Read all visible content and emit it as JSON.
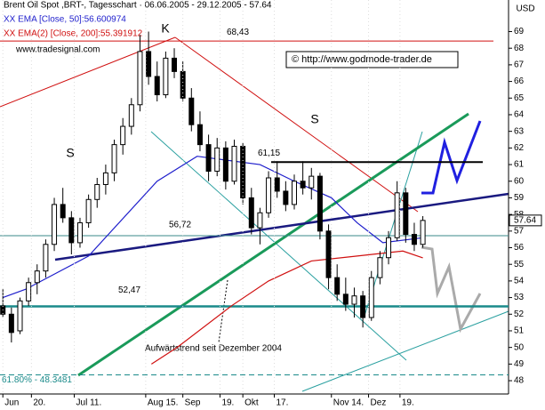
{
  "chart_data": {
    "type": "candlestick",
    "title": "Brent Oil Spot ,BRT-, Tagesschart · 06.06.2005 - 29.12.2005 - 57.64",
    "source": "www.tradesignal.com",
    "copyright": "© http://www.godmode-trader.de",
    "y_unit": "USD",
    "last": 57.64,
    "ylim": [
      47.2,
      70.9
    ],
    "yticks": [
      48,
      49,
      50,
      51,
      52,
      53,
      54,
      55,
      56,
      57,
      58,
      59,
      60,
      61,
      62,
      63,
      64,
      65,
      66,
      67,
      68,
      69
    ],
    "xlim": [
      -1,
      177
    ],
    "xticks": [
      {
        "value": 0,
        "label": "Jun"
      },
      {
        "value": 10,
        "label": "20."
      },
      {
        "value": 25,
        "label": "Jul 11."
      },
      {
        "value": 50,
        "label": "Aug 15."
      },
      {
        "value": 63,
        "label": "Sep"
      },
      {
        "value": 76,
        "label": "19."
      },
      {
        "value": 84,
        "label": "Okt"
      },
      {
        "value": 95,
        "label": "17."
      },
      {
        "value": 115,
        "label": "Nov 14."
      },
      {
        "value": 128,
        "label": "Dez"
      },
      {
        "value": 139,
        "label": "19."
      }
    ],
    "x": [
      0,
      3,
      6,
      9,
      12,
      15,
      18,
      21,
      24,
      27,
      30,
      33,
      36,
      39,
      42,
      45,
      48,
      51,
      54,
      57,
      60,
      63,
      66,
      69,
      72,
      75,
      78,
      81,
      84,
      87,
      90,
      93,
      96,
      99,
      102,
      105,
      108,
      111,
      114,
      117,
      120,
      123,
      126,
      129,
      132,
      135,
      138,
      141,
      144,
      147
    ],
    "open": [
      52.5,
      52.0,
      51.0,
      52.8,
      53.9,
      54.6,
      56.2,
      58.6,
      57.8,
      56.3,
      57.5,
      58.9,
      59.8,
      60.5,
      62.2,
      63.3,
      64.6,
      67.8,
      66.3,
      65.2,
      67.4,
      66.6,
      65.0,
      63.4,
      62.2,
      60.6,
      62.0,
      60.0,
      62.1,
      59.0,
      57.2,
      58.1,
      60.2,
      59.4,
      58.6,
      60.0,
      59.6,
      60.3,
      57.0,
      54.2,
      53.2,
      52.6,
      53.1,
      51.8,
      54.2,
      55.4,
      56.6,
      59.3,
      56.8,
      56.2
    ],
    "high": [
      53.5,
      52.4,
      53.0,
      54.2,
      55.0,
      56.5,
      59.0,
      59.6,
      58.2,
      57.8,
      59.2,
      60.2,
      61.0,
      62.5,
      63.8,
      65.0,
      68.8,
      69.0,
      67.2,
      67.8,
      68.0,
      67.2,
      65.6,
      64.2,
      62.8,
      62.6,
      62.4,
      62.5,
      62.3,
      59.6,
      58.4,
      60.6,
      61.2,
      60.0,
      60.4,
      61.2,
      60.8,
      60.5,
      57.4,
      55.0,
      54.2,
      53.6,
      53.4,
      54.6,
      55.8,
      57.0,
      60.0,
      59.6,
      57.5,
      57.9
    ],
    "low": [
      51.8,
      50.3,
      50.8,
      52.5,
      53.2,
      54.2,
      55.8,
      57.5,
      55.6,
      56.0,
      57.2,
      58.4,
      59.2,
      60.0,
      61.6,
      62.8,
      64.2,
      65.8,
      64.8,
      65.0,
      66.2,
      64.8,
      63.0,
      61.8,
      60.0,
      60.3,
      59.5,
      59.8,
      58.6,
      56.8,
      56.2,
      57.8,
      59.0,
      58.2,
      58.3,
      59.2,
      58.9,
      56.5,
      53.5,
      52.8,
      52.2,
      51.8,
      51.2,
      51.6,
      53.8,
      55.0,
      56.4,
      56.3,
      55.8,
      56.0
    ],
    "close": [
      52.0,
      50.9,
      52.8,
      53.9,
      54.6,
      56.2,
      58.6,
      57.8,
      56.3,
      57.5,
      58.9,
      59.8,
      60.5,
      62.2,
      63.3,
      64.6,
      67.8,
      66.3,
      65.2,
      67.4,
      66.6,
      65.0,
      63.4,
      62.2,
      60.6,
      62.0,
      60.0,
      62.1,
      59.0,
      57.2,
      58.1,
      60.2,
      59.4,
      58.6,
      60.0,
      59.6,
      60.3,
      57.0,
      54.2,
      53.2,
      52.6,
      53.1,
      51.8,
      54.2,
      55.4,
      56.6,
      59.3,
      56.8,
      56.2,
      57.64
    ],
    "series": [
      {
        "name": "XX EMA [Close, 50]:56.600974",
        "color": "#1f1fcc",
        "x": [
          0,
          8,
          30,
          54,
          68,
          90,
          102,
          115,
          124,
          133,
          147
        ],
        "values": [
          53.0,
          53.5,
          55.5,
          60.0,
          61.5,
          61.0,
          60.0,
          59.0,
          57.5,
          56.3,
          56.6
        ]
      },
      {
        "name": "XX EMA(2) [Close, 200]:55.391912",
        "color": "#d01010",
        "x": [
          52,
          61,
          80,
          93,
          108,
          124,
          140,
          147
        ],
        "values": [
          49.0,
          50.0,
          52.5,
          54.0,
          55.2,
          55.5,
          55.8,
          55.39
        ]
      }
    ],
    "levels": [
      {
        "value": 68.43,
        "label": "68,43",
        "color": "#d01010"
      },
      {
        "value": 61.15,
        "label": "61,15",
        "color": "#000000"
      },
      {
        "value": 56.72,
        "label": "56,72",
        "color": "#3a8a8a"
      },
      {
        "value": 52.47,
        "label": "52,47",
        "color": "#1a8a8a"
      },
      {
        "value": 48.3481,
        "label": "61.80% - 48.3481",
        "color": "#1a8a8a"
      }
    ],
    "annotations": [
      "K",
      "S",
      "S",
      "Aufwärtstrend seit Dezember 2004"
    ]
  }
}
